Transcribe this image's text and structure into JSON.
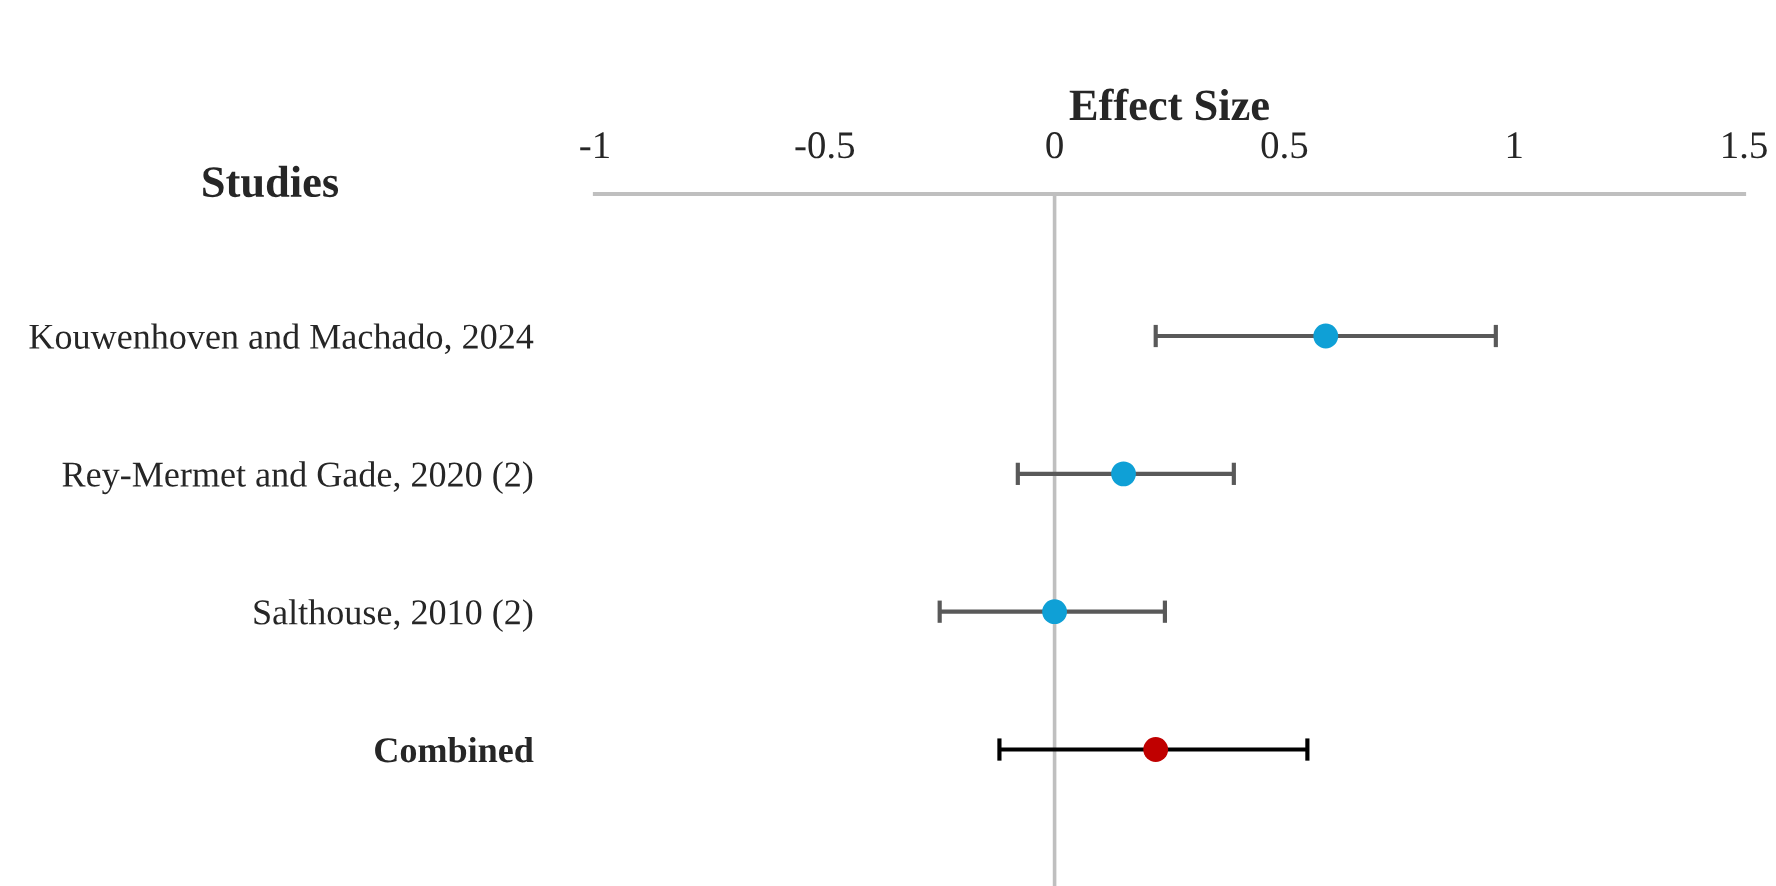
{
  "chart_data": {
    "type": "scatter",
    "orientation": "horizontal",
    "xlabel": "Effect Size",
    "ylabel": "Studies",
    "categories": [
      "Kouwenhoven and Machado, 2024",
      "Rey-Mermet and Gade, 2020 (2)",
      "Salthouse, 2010 (2)",
      "Combined"
    ],
    "values": [
      0.59,
      0.15,
      0.0,
      0.22
    ],
    "errors": [
      [
        0.22,
        0.96
      ],
      [
        -0.08,
        0.39
      ],
      [
        -0.25,
        0.24
      ],
      [
        -0.12,
        0.55
      ]
    ],
    "colors": [
      "#0fa0d6",
      "#0fa0d6",
      "#0fa0d6",
      "#c00000"
    ],
    "xlim": [
      -1,
      1.5
    ],
    "xticks": [
      -1,
      -0.5,
      0,
      0.5,
      1,
      1.5
    ],
    "ref_lines": [
      {
        "axis": "x",
        "value": 0,
        "color": "#bfbfbf"
      }
    ],
    "marker": "circle",
    "grid": false,
    "legend": false
  }
}
